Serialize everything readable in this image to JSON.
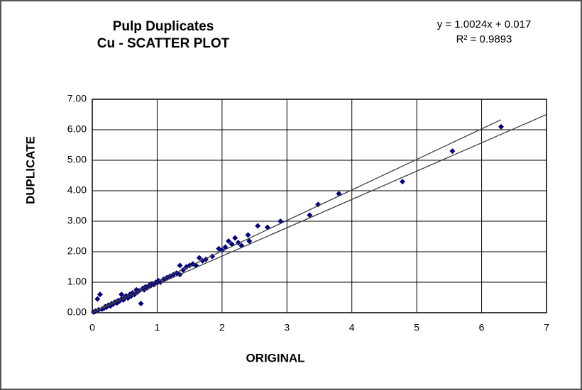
{
  "chart_data": {
    "type": "scatter",
    "title": "Pulp Duplicates",
    "subtitle": "Cu -  SCATTER PLOT",
    "annotations": [
      "y = 1.0024x + 0.017",
      "R² = 0.9893"
    ],
    "xlabel": "ORIGINAL",
    "ylabel": "DUPLICATE",
    "xlim": [
      0,
      7
    ],
    "xticks": [
      0,
      1,
      2,
      3,
      4,
      5,
      6,
      7
    ],
    "ylim": [
      0,
      7
    ],
    "yticks": [
      {
        "value": 0,
        "label": "0.00"
      },
      {
        "value": 1,
        "label": "1.00"
      },
      {
        "value": 2,
        "label": "2.00"
      },
      {
        "value": 3,
        "label": "3.00"
      },
      {
        "value": 4,
        "label": "4.00"
      },
      {
        "value": 5,
        "label": "5.00"
      },
      {
        "value": 6,
        "label": "6.00"
      },
      {
        "value": 7,
        "label": "7.00"
      }
    ],
    "grid": true,
    "series": [
      {
        "type": "scatter",
        "color": "#000080",
        "x": [
          0.02,
          0.05,
          0.08,
          0.12,
          0.1,
          0.15,
          0.18,
          0.2,
          0.22,
          0.25,
          0.28,
          0.3,
          0.32,
          0.35,
          0.38,
          0.4,
          0.42,
          0.45,
          0.45,
          0.48,
          0.5,
          0.52,
          0.55,
          0.58,
          0.6,
          0.62,
          0.65,
          0.68,
          0.7,
          0.72,
          0.75,
          0.78,
          0.8,
          0.82,
          0.85,
          0.88,
          0.9,
          0.92,
          0.95,
          0.98,
          1.0,
          1.02,
          1.05,
          1.1,
          1.15,
          1.2,
          1.25,
          1.3,
          1.35,
          1.35,
          1.4,
          1.45,
          1.5,
          1.55,
          1.6,
          1.65,
          1.7,
          1.75,
          1.85,
          1.95,
          2.0,
          2.05,
          2.1,
          2.15,
          2.2,
          2.25,
          2.3,
          2.4,
          2.42,
          2.55,
          2.7,
          2.9,
          3.35,
          3.48,
          3.8,
          4.78,
          5.55,
          6.3
        ],
        "values": [
          0.02,
          0.05,
          0.45,
          0.6,
          0.1,
          0.12,
          0.15,
          0.2,
          0.18,
          0.25,
          0.22,
          0.3,
          0.28,
          0.35,
          0.32,
          0.4,
          0.38,
          0.45,
          0.6,
          0.42,
          0.5,
          0.55,
          0.48,
          0.6,
          0.55,
          0.65,
          0.6,
          0.75,
          0.68,
          0.72,
          0.3,
          0.8,
          0.75,
          0.85,
          0.82,
          0.9,
          0.88,
          0.95,
          0.92,
          1.0,
          0.98,
          1.05,
          1.0,
          1.1,
          1.15,
          1.2,
          1.25,
          1.3,
          1.25,
          1.55,
          1.4,
          1.5,
          1.55,
          1.6,
          1.55,
          1.8,
          1.7,
          1.75,
          1.85,
          2.1,
          2.05,
          2.15,
          2.35,
          2.25,
          2.45,
          2.3,
          2.2,
          2.55,
          2.35,
          2.85,
          2.8,
          3.0,
          3.2,
          3.55,
          3.9,
          4.3,
          5.3,
          6.1
        ]
      },
      {
        "type": "line",
        "color": "#404040",
        "x": [
          0,
          6.3
        ],
        "values": [
          0.02,
          6.33
        ]
      },
      {
        "type": "line",
        "color": "#404040",
        "x": [
          0,
          7
        ],
        "values": [
          0,
          6.5
        ]
      }
    ]
  }
}
